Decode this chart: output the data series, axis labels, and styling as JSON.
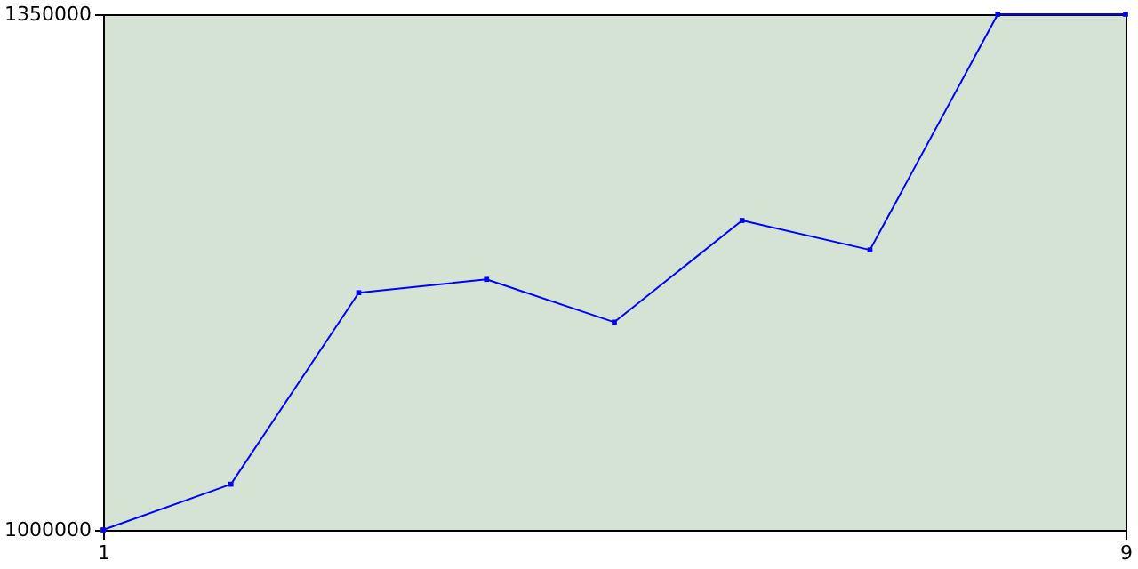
{
  "chart_data": {
    "type": "line",
    "x": [
      1,
      2,
      3,
      4,
      5,
      6,
      7,
      8,
      9
    ],
    "series": [
      {
        "color": "#0000ff",
        "values": [
          1000000,
          1031000,
          1161000,
          1170000,
          1141000,
          1210000,
          1190000,
          1350000,
          1350000
        ]
      }
    ],
    "xlim": [
      1,
      9
    ],
    "xticks": [
      1,
      9
    ],
    "ylim": [
      1000000,
      1350000
    ],
    "yticks": [
      1000000,
      1350000
    ],
    "marker": "square",
    "line_style": "solid"
  }
}
